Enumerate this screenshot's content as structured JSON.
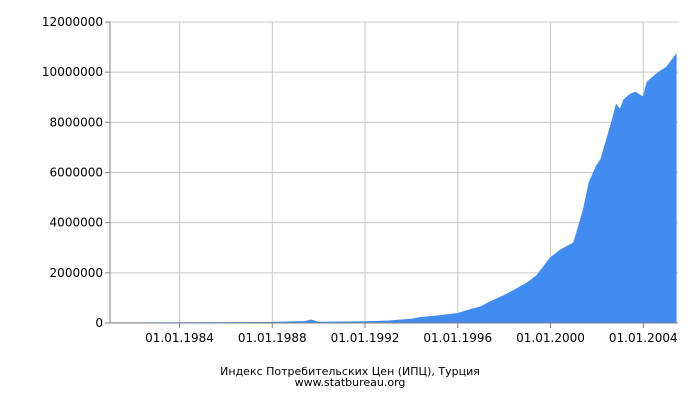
{
  "chart_data": {
    "type": "area",
    "title": "Индекс Потребительских Цен (ИПЦ), Турция",
    "source": "www.statbureau.org",
    "xlabel": "",
    "ylabel": "",
    "grid": true,
    "color": "#418CF0",
    "xlim": [
      "1981-01-01",
      "2005-07-01"
    ],
    "ylim": [
      0,
      12000000
    ],
    "x_ticks": [
      "01.01.1984",
      "01.01.1988",
      "01.01.1992",
      "01.01.1996",
      "01.01.2000",
      "01.01.2004"
    ],
    "y_ticks": [
      "0",
      "2000000",
      "4000000",
      "6000000",
      "8000000",
      "10000000",
      "12000000"
    ],
    "series": [
      {
        "x": [
          "1981-01-01",
          "1984-01-01",
          "1988-01-01",
          "1989-06-01",
          "1989-09-01",
          "1990-01-01",
          "1992-01-01",
          "1993-01-01",
          "1994-01-01",
          "1994-06-01",
          "1995-01-01",
          "1996-01-01",
          "1996-06-01",
          "1997-01-01",
          "1997-06-01",
          "1998-01-01",
          "1998-06-01",
          "1999-01-01",
          "1999-06-01",
          "2000-01-01",
          "2000-06-01",
          "2001-01-01",
          "2001-03-01",
          "2001-06-01",
          "2001-09-01",
          "2002-01-01",
          "2002-03-01",
          "2002-06-01",
          "2002-09-01",
          "2002-11-01",
          "2003-01-01",
          "2003-03-01",
          "2003-06-01",
          "2003-09-01",
          "2004-01-01",
          "2004-03-01",
          "2004-06-01",
          "2004-09-01",
          "2005-01-01",
          "2005-04-01",
          "2005-06-01"
        ],
        "values": [
          5000,
          10000,
          25000,
          60000,
          120000,
          30000,
          50000,
          80000,
          150000,
          220000,
          270000,
          380000,
          500000,
          650000,
          850000,
          1100000,
          1300000,
          1600000,
          1900000,
          2600000,
          2900000,
          3200000,
          3700000,
          4500000,
          5600000,
          6300000,
          6500000,
          7300000,
          8100000,
          8700000,
          8500000,
          8900000,
          9100000,
          9200000,
          9000000,
          9600000,
          9800000,
          10000000,
          10200000,
          10500000,
          10700000
        ]
      }
    ]
  }
}
